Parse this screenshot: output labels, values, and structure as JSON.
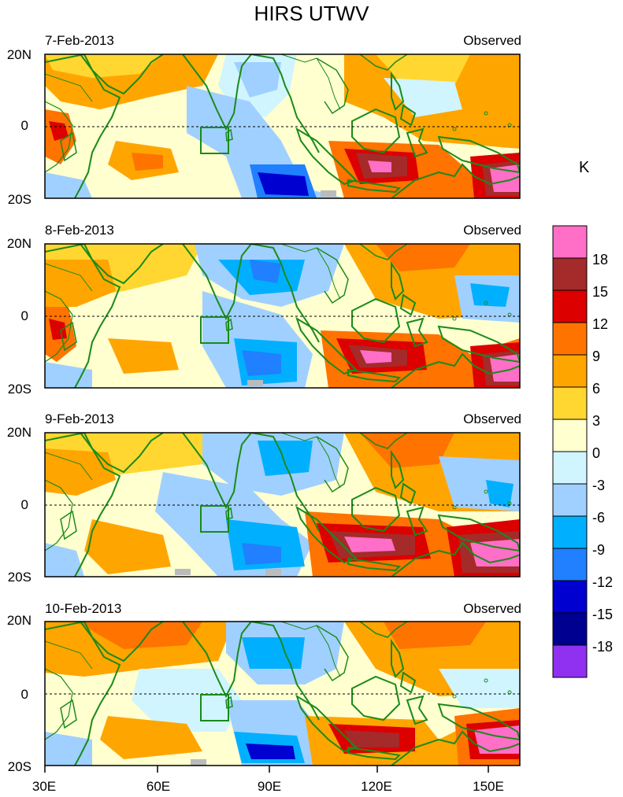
{
  "title": "HIRS UTWV",
  "panels": [
    {
      "date": "7-Feb-2013",
      "label": "Observed"
    },
    {
      "date": "8-Feb-2013",
      "label": "Observed"
    },
    {
      "date": "9-Feb-2013",
      "label": "Observed"
    },
    {
      "date": "10-Feb-2013",
      "label": "Observed"
    }
  ],
  "axes": {
    "lat_labels": [
      "20N",
      "0",
      "20S"
    ],
    "lon_labels": [
      "30E",
      "60E",
      "90E",
      "120E",
      "150E"
    ]
  },
  "colorbar": {
    "unit": "K",
    "labels": [
      "18",
      "15",
      "12",
      "9",
      "6",
      "3",
      "0",
      "-3",
      "-6",
      "-9",
      "-12",
      "-15",
      "-18"
    ],
    "colors": [
      "#ff6ec7",
      "#a52a2a",
      "#dc0000",
      "#ff7300",
      "#ffa500",
      "#ffd730",
      "#ffffd0",
      "#d0f5ff",
      "#a0d0ff",
      "#00b0ff",
      "#2080ff",
      "#0000d0",
      "#000090",
      "#9030f0"
    ]
  },
  "map_colors": {
    "coast": "#1a8a1a",
    "box": "#1a8a1a"
  }
}
